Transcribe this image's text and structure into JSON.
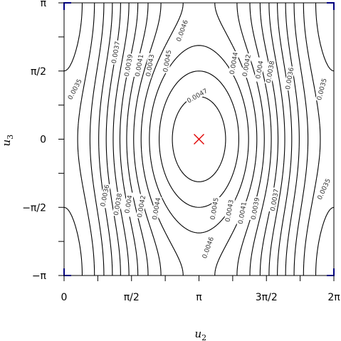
{
  "chart_data": {
    "type": "contour",
    "xlabel": "u",
    "xlabel_sub": "2",
    "ylabel": "u",
    "ylabel_sub": "3",
    "xlim": [
      0,
      6.2832
    ],
    "ylim": [
      -3.1416,
      3.1416
    ],
    "x_ticks": [
      0,
      1.5708,
      3.1416,
      4.7124,
      6.2832
    ],
    "x_tick_labels": [
      "0",
      "π/2",
      "π",
      "3π/2",
      "2π"
    ],
    "y_ticks": [
      -3.1416,
      -1.5708,
      0,
      1.5708,
      3.1416
    ],
    "y_tick_labels": [
      "−π",
      "−π/2",
      "0",
      "π/2",
      "π"
    ],
    "grid": false,
    "levels": [
      0.0035,
      0.0036,
      0.0037,
      0.0038,
      0.0039,
      0.004,
      0.0041,
      0.0042,
      0.0043,
      0.0044,
      0.0045,
      0.0046,
      0.0047
    ],
    "contour_labels": [
      {
        "text": "0.0035",
        "x": 0.25,
        "y": 1.15,
        "angle": -62
      },
      {
        "text": "0.0036",
        "x": 0.95,
        "y": -1.3,
        "angle": -78
      },
      {
        "text": "0.0037",
        "x": 1.2,
        "y": 2.0,
        "angle": -80
      },
      {
        "text": "0.0038",
        "x": 1.25,
        "y": -1.5,
        "angle": -80
      },
      {
        "text": "0.0039",
        "x": 1.5,
        "y": 1.7,
        "angle": -80
      },
      {
        "text": "0.004",
        "x": 1.5,
        "y": -1.5,
        "angle": -80
      },
      {
        "text": "0.0041",
        "x": 1.75,
        "y": 1.7,
        "angle": -80
      },
      {
        "text": "0.0042",
        "x": 1.8,
        "y": -1.55,
        "angle": -80
      },
      {
        "text": "0.0043",
        "x": 2.0,
        "y": 1.7,
        "angle": -80
      },
      {
        "text": "0.0044",
        "x": 2.15,
        "y": -1.6,
        "angle": -80
      },
      {
        "text": "0.0045",
        "x": 2.4,
        "y": 1.8,
        "angle": -80
      },
      {
        "text": "0.0046",
        "x": 2.75,
        "y": 2.5,
        "angle": -70
      },
      {
        "text": "0.0047",
        "x": 3.1,
        "y": 1.0,
        "angle": -30
      },
      {
        "text": "0.0044",
        "x": 3.95,
        "y": 1.75,
        "angle": -80
      },
      {
        "text": "0.0042",
        "x": 4.25,
        "y": 1.7,
        "angle": -80
      },
      {
        "text": "0.004",
        "x": 4.55,
        "y": 1.6,
        "angle": -80
      },
      {
        "text": "0.0038",
        "x": 4.8,
        "y": 1.55,
        "angle": -80
      },
      {
        "text": "0.0036",
        "x": 5.25,
        "y": 1.4,
        "angle": -80
      },
      {
        "text": "0.0035",
        "x": 6.0,
        "y": 1.15,
        "angle": -75
      },
      {
        "text": "0.0045",
        "x": 3.5,
        "y": -1.6,
        "angle": -80
      },
      {
        "text": "0.0043",
        "x": 3.85,
        "y": -1.65,
        "angle": -80
      },
      {
        "text": "0.0041",
        "x": 4.15,
        "y": -1.7,
        "angle": -80
      },
      {
        "text": "0.0039",
        "x": 4.45,
        "y": -1.6,
        "angle": -80
      },
      {
        "text": "0.0037",
        "x": 4.9,
        "y": -1.4,
        "angle": -80
      },
      {
        "text": "0.0035",
        "x": 6.05,
        "y": -1.15,
        "angle": -65
      },
      {
        "text": "0.0046",
        "x": 3.35,
        "y": -2.5,
        "angle": -70
      }
    ],
    "maximum_marker": {
      "x": 3.1416,
      "y": 0
    },
    "colors": {
      "contour": "#000000",
      "marker": "#e00000",
      "corner_marker": "#0000ff"
    }
  }
}
